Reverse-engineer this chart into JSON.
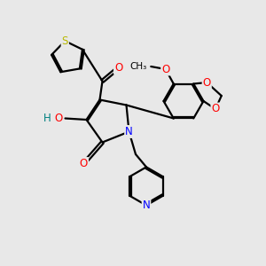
{
  "background_color": "#e8e8e8",
  "atom_colors": {
    "C": "#000000",
    "N": "#0000ff",
    "O": "#ff0000",
    "S": "#b8b800",
    "H": "#008080"
  },
  "bond_color": "#000000",
  "bond_width": 1.6,
  "figsize": [
    3.0,
    3.0
  ],
  "dpi": 100,
  "xlim": [
    0,
    10
  ],
  "ylim": [
    0,
    10
  ]
}
